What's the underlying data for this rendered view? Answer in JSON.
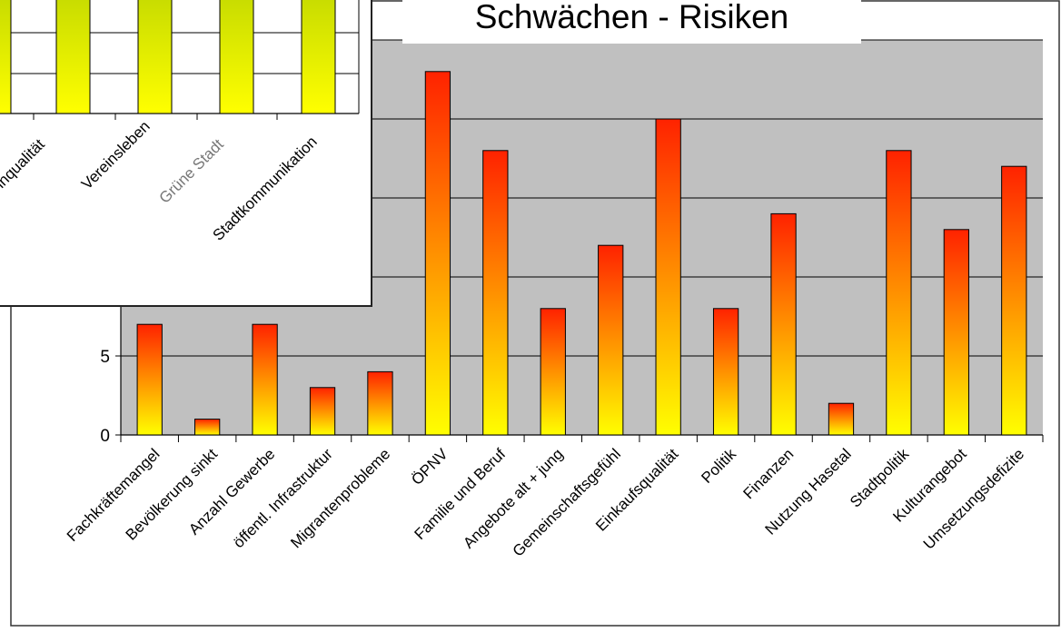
{
  "chart_data": [
    {
      "type": "bar",
      "title": "Schwächen - Risiken",
      "categories": [
        "Fachkräftemangel",
        "Bevölkerung sinkt",
        "Anzahl Gewerbe",
        "öffentl. Infrastruktur",
        "Migrantenprobleme",
        "ÖPNV",
        "Familie und Beruf",
        "Angebote alt + jung",
        "Gemeinschaftsgefühl",
        "Einkaufsqualität",
        "Politik",
        "Finanzen",
        "Nutzung Hasetal",
        "Stadtpolitik",
        "Kulturangebot",
        "Umsetzungsdefizite"
      ],
      "values": [
        7,
        1,
        7,
        3,
        4,
        23,
        18,
        8,
        12,
        20,
        8,
        14,
        2,
        18,
        13,
        17
      ],
      "ytick_labels": [
        "0",
        "5"
      ],
      "ylim": [
        0,
        25
      ],
      "grid": true,
      "colors": {
        "bar_top": "#ff2200",
        "bar_bottom": "#ffff00",
        "plot_bg": "#c0c0c0"
      }
    },
    {
      "type": "bar",
      "title": "",
      "categories": [
        "Wohnqualität",
        "Vereinsleben",
        "Grüne Stadt",
        "Stadtkommunikation"
      ],
      "category_labels_visible": [
        "ohnqualität",
        "Vereinsleben",
        "Grüne Stadt",
        "Stadtkommunikation"
      ],
      "values": [
        null,
        null,
        null,
        null
      ],
      "grid": true,
      "colors": {
        "bar_top": "#c8dc00",
        "bar_bottom": "#ffff00",
        "plot_bg": "#ffffff"
      }
    }
  ]
}
